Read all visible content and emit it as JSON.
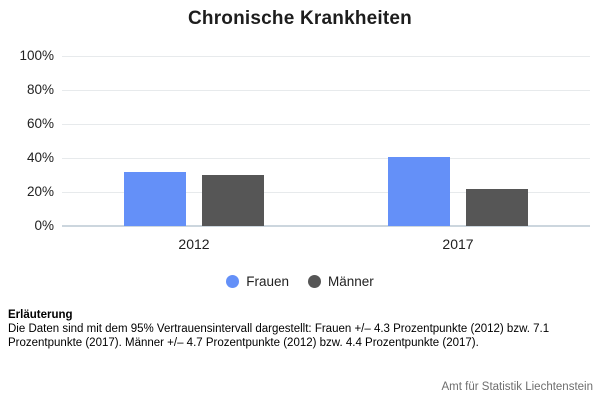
{
  "title": "Chronische Krankheiten",
  "chart_data": {
    "type": "bar",
    "title": "Chronische Krankheiten",
    "categories": [
      "2012",
      "2017"
    ],
    "series": [
      {
        "name": "Frauen",
        "color": "#6490f8",
        "values": [
          32,
          40.5
        ]
      },
      {
        "name": "Männer",
        "color": "#565656",
        "values": [
          30,
          21.5
        ]
      }
    ],
    "xlabel": "",
    "ylabel": "",
    "ylim": [
      0,
      100
    ],
    "ytick_values": [
      0,
      20,
      40,
      60,
      80,
      100
    ],
    "ytick_labels": [
      "0%",
      "20%",
      "40%",
      "60%",
      "80%",
      "100%"
    ],
    "grid": true,
    "legend_position": "bottom"
  },
  "footer": {
    "heading": "Erläuterung",
    "body": "Die Daten sind mit dem 95% Vertrauensintervall dargestellt: Frauen +/– 4.3 Prozentpunkte (2012) bzw. 7.1 Prozentpunkte (2017). Männer +/– 4.7 Prozentpunkte (2012) bzw. 4.4 Prozentpunkte (2017)."
  },
  "source": "Amt für Statistik Liechtenstein",
  "colors": {
    "frauen": "#6490f8",
    "maenner": "#565656",
    "gridline": "#e7eaec",
    "baseline": "#ccd6de"
  }
}
